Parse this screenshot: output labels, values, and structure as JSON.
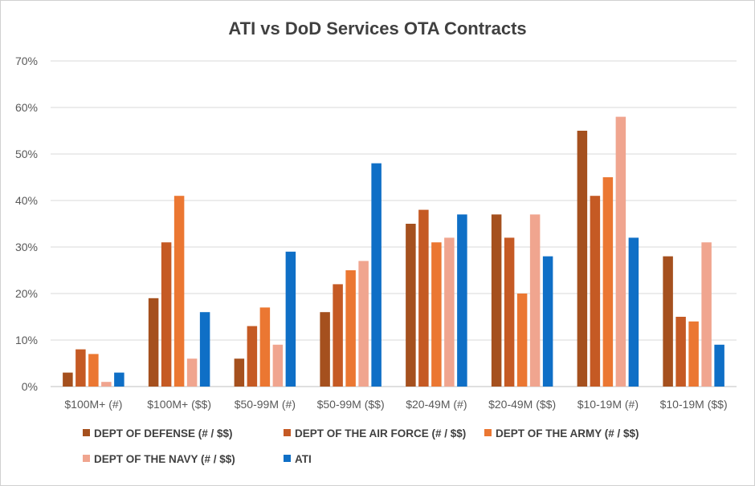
{
  "chart_data": {
    "type": "bar",
    "title": "ATI vs DoD Services OTA Contracts",
    "xlabel": "",
    "ylabel": "",
    "ylim": [
      0,
      70
    ],
    "y_ticks": [
      "0%",
      "10%",
      "20%",
      "30%",
      "40%",
      "50%",
      "60%",
      "70%"
    ],
    "grid": "horizontal",
    "legend_position": "bottom",
    "categories": [
      "$100M+ (#)",
      "$100M+ ($$)",
      "$50-99M (#)",
      "$50-99M ($$)",
      "$20-49M (#)",
      "$20-49M ($$)",
      "$10-19M (#)",
      "$10-19M ($$)"
    ],
    "series": [
      {
        "name": "DEPT OF DEFENSE (# / $$)",
        "color": "#A5501E",
        "values": [
          3,
          19,
          6,
          16,
          35,
          37,
          55,
          28
        ]
      },
      {
        "name": "DEPT OF THE AIR FORCE (# / $$)",
        "color": "#C55A24",
        "values": [
          8,
          31,
          13,
          22,
          38,
          32,
          41,
          15
        ]
      },
      {
        "name": "DEPT OF THE ARMY (# / $$)",
        "color": "#EB7732",
        "values": [
          7,
          41,
          17,
          25,
          31,
          20,
          45,
          14
        ]
      },
      {
        "name": "DEPT OF THE NAVY (# / $$)",
        "color": "#F0A58F",
        "values": [
          1,
          6,
          9,
          27,
          32,
          37,
          58,
          31
        ]
      },
      {
        "name": "ATI",
        "color": "#0F6FC6",
        "values": [
          3,
          16,
          29,
          48,
          37,
          28,
          32,
          9
        ]
      }
    ]
  }
}
